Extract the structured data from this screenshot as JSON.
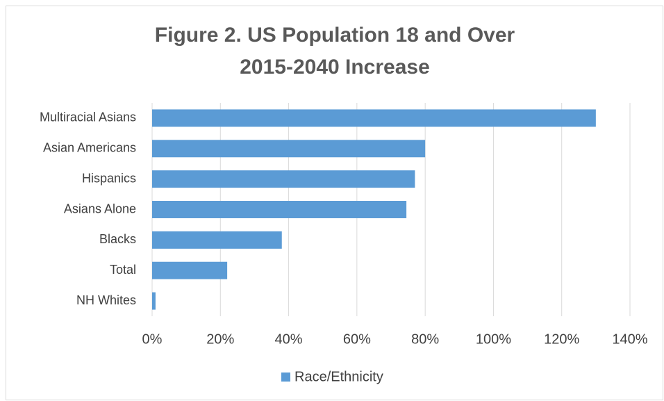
{
  "chart_data": {
    "type": "hbar",
    "title": [
      "Figure 2. US Population 18 and Over",
      "2015-2040 Increase"
    ],
    "categories": [
      "Multiracial Asians",
      "Asian Americans",
      "Hispanics",
      "Asians Alone",
      "Blacks",
      "Total",
      "NH Whites"
    ],
    "series": [
      {
        "name": "Race/Ethnicity",
        "color": "#5b9bd5",
        "values": [
          130,
          80,
          77,
          74.5,
          38,
          22,
          1
        ]
      }
    ],
    "xlim": [
      0,
      140
    ],
    "xticks": [
      {
        "value": 0,
        "label": "0%"
      },
      {
        "value": 20,
        "label": "20%"
      },
      {
        "value": 40,
        "label": "40%"
      },
      {
        "value": 60,
        "label": "60%"
      },
      {
        "value": 80,
        "label": "80%"
      },
      {
        "value": 100,
        "label": "100%"
      },
      {
        "value": 120,
        "label": "120%"
      },
      {
        "value": 140,
        "label": "140%"
      }
    ],
    "grid": true,
    "legend": "bottom"
  }
}
